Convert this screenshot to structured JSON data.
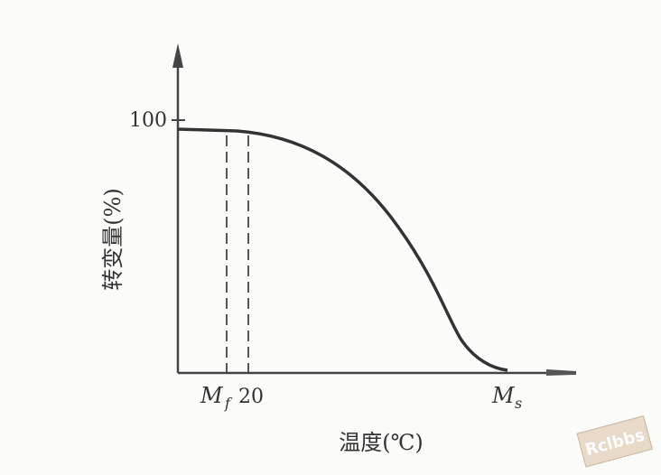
{
  "axis": {
    "y_label": "转变量(%)",
    "x_label": "温度(℃)",
    "y_tick": "100"
  },
  "points": {
    "mf_main": "M",
    "mf_sub": "f",
    "twenty": "20",
    "ms_main": "M",
    "ms_sub": "s"
  },
  "watermark": "Rclbbs"
}
